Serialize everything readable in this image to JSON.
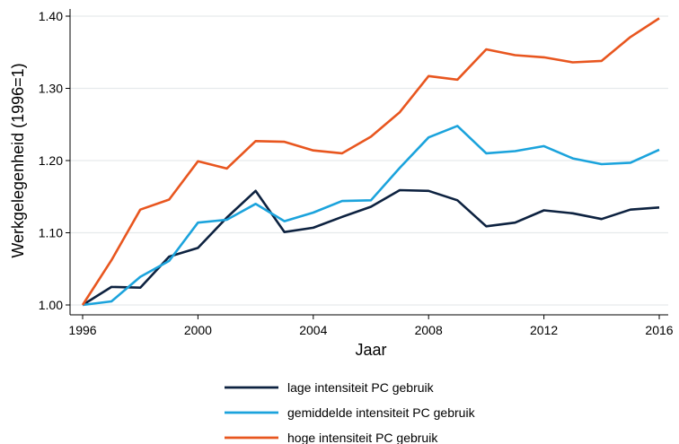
{
  "chart_data": {
    "type": "line",
    "title": "",
    "xlabel": "Jaar",
    "ylabel": "Werkgelegenheid (1996=1)",
    "x": [
      1996,
      1997,
      1998,
      1999,
      2000,
      2001,
      2002,
      2003,
      2004,
      2005,
      2006,
      2007,
      2008,
      2009,
      2010,
      2011,
      2012,
      2013,
      2014,
      2015,
      2016
    ],
    "xlim": [
      1996,
      2016
    ],
    "ylim": [
      1.0,
      1.4
    ],
    "xticks": [
      1996,
      2000,
      2004,
      2008,
      2012,
      2016
    ],
    "yticks": [
      1.0,
      1.1,
      1.2,
      1.3,
      1.4
    ],
    "xtick_labels": [
      "1996",
      "2000",
      "2004",
      "2008",
      "2012",
      "2016"
    ],
    "ytick_labels": [
      "1.00",
      "1.10",
      "1.20",
      "1.30",
      "1.40"
    ],
    "grid": "horizontal",
    "legend_position": "bottom",
    "series": [
      {
        "name": "lage intensiteit PC gebruik",
        "color": "#0d2240",
        "values": [
          1.0,
          1.025,
          1.024,
          1.067,
          1.079,
          1.121,
          1.158,
          1.101,
          1.107,
          1.122,
          1.136,
          1.159,
          1.158,
          1.145,
          1.109,
          1.114,
          1.131,
          1.127,
          1.119,
          1.132,
          1.135
        ]
      },
      {
        "name": "gemiddelde intensiteit PC gebruik",
        "color": "#1ba3dc",
        "values": [
          1.0,
          1.005,
          1.039,
          1.061,
          1.114,
          1.118,
          1.14,
          1.116,
          1.128,
          1.144,
          1.145,
          1.19,
          1.232,
          1.248,
          1.21,
          1.213,
          1.22,
          1.203,
          1.195,
          1.197,
          1.215
        ]
      },
      {
        "name": "hoge intensiteit PC gebruik",
        "color": "#e8561f",
        "values": [
          1.0,
          1.062,
          1.132,
          1.146,
          1.199,
          1.189,
          1.227,
          1.226,
          1.214,
          1.21,
          1.233,
          1.267,
          1.317,
          1.312,
          1.354,
          1.346,
          1.343,
          1.336,
          1.338,
          1.371,
          1.397
        ]
      }
    ]
  }
}
